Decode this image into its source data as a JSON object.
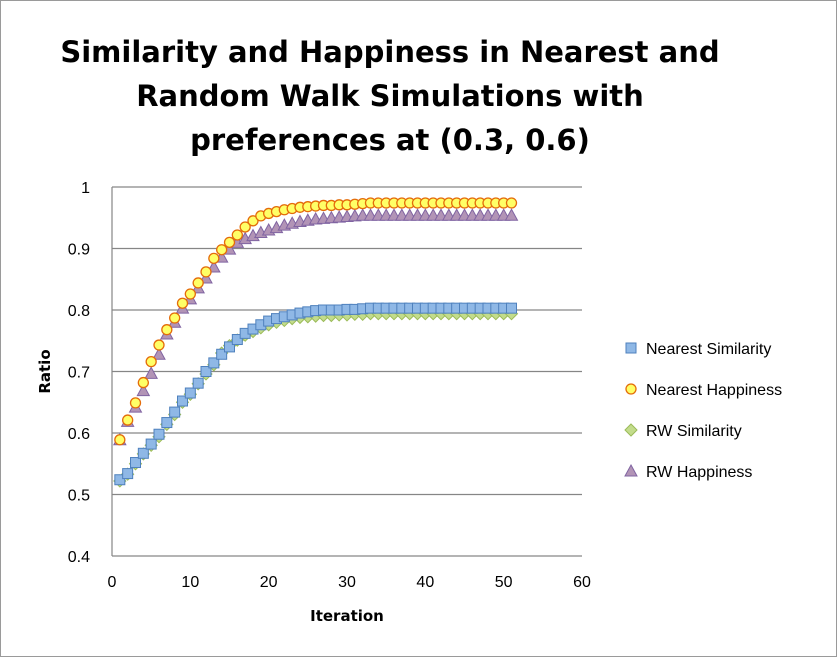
{
  "chart_data": {
    "type": "scatter",
    "title_lines": [
      "Similarity and Happiness in Nearest and",
      "Random Walk Simulations with",
      "preferences at (0.3, 0.6)"
    ],
    "xlabel": "Iteration",
    "ylabel": "Ratio",
    "xlim": [
      0,
      60
    ],
    "ylim": [
      0.4,
      1
    ],
    "xticks": [
      "0",
      "10",
      "20",
      "30",
      "40",
      "50",
      "60"
    ],
    "yticks": [
      "0.4",
      "0.5",
      "0.6",
      "0.7",
      "0.8",
      "0.9",
      "1"
    ],
    "grid": "horizontal",
    "legend_position": "right",
    "x": [
      1,
      2,
      3,
      4,
      5,
      6,
      7,
      8,
      9,
      10,
      11,
      12,
      13,
      14,
      15,
      16,
      17,
      18,
      19,
      20,
      21,
      22,
      23,
      24,
      25,
      26,
      27,
      28,
      29,
      30,
      31,
      32,
      33,
      34,
      35,
      36,
      37,
      38,
      39,
      40,
      41,
      42,
      43,
      44,
      45,
      46,
      47,
      48,
      49,
      50,
      51
    ],
    "series": [
      {
        "name": "Nearest Similarity",
        "marker": "square",
        "fill": "#8fb8e6",
        "stroke": "#4f81bd",
        "values": [
          0.524,
          0.534,
          0.552,
          0.567,
          0.582,
          0.598,
          0.617,
          0.634,
          0.652,
          0.665,
          0.681,
          0.7,
          0.714,
          0.728,
          0.74,
          0.752,
          0.762,
          0.769,
          0.776,
          0.782,
          0.786,
          0.789,
          0.792,
          0.795,
          0.797,
          0.799,
          0.8,
          0.8,
          0.8,
          0.801,
          0.801,
          0.802,
          0.803,
          0.803,
          0.803,
          0.803,
          0.803,
          0.803,
          0.803,
          0.803,
          0.803,
          0.803,
          0.803,
          0.803,
          0.803,
          0.803,
          0.803,
          0.803,
          0.803,
          0.803,
          0.803
        ]
      },
      {
        "name": "Nearest Happiness",
        "marker": "circle",
        "fill": "#ffff66",
        "stroke": "#e46c0a",
        "values": [
          0.589,
          0.621,
          0.649,
          0.682,
          0.716,
          0.743,
          0.768,
          0.787,
          0.811,
          0.826,
          0.844,
          0.862,
          0.884,
          0.898,
          0.91,
          0.922,
          0.935,
          0.945,
          0.953,
          0.957,
          0.96,
          0.963,
          0.965,
          0.967,
          0.968,
          0.969,
          0.97,
          0.97,
          0.971,
          0.971,
          0.972,
          0.973,
          0.974,
          0.974,
          0.974,
          0.974,
          0.974,
          0.974,
          0.974,
          0.974,
          0.974,
          0.974,
          0.974,
          0.974,
          0.974,
          0.974,
          0.974,
          0.974,
          0.974,
          0.974,
          0.974
        ]
      },
      {
        "name": "RW Similarity",
        "marker": "diamond",
        "fill": "#c3dc8c",
        "stroke": "#9bbb59",
        "values": [
          0.522,
          0.533,
          0.55,
          0.566,
          0.58,
          0.594,
          0.614,
          0.63,
          0.65,
          0.663,
          0.68,
          0.696,
          0.711,
          0.73,
          0.742,
          0.751,
          0.759,
          0.765,
          0.771,
          0.776,
          0.78,
          0.783,
          0.786,
          0.788,
          0.789,
          0.79,
          0.791,
          0.791,
          0.792,
          0.792,
          0.793,
          0.793,
          0.794,
          0.794,
          0.794,
          0.794,
          0.794,
          0.794,
          0.794,
          0.794,
          0.794,
          0.794,
          0.794,
          0.794,
          0.794,
          0.794,
          0.794,
          0.794,
          0.794,
          0.794,
          0.794
        ]
      },
      {
        "name": "RW Happiness",
        "marker": "triangle",
        "fill": "#b294b6",
        "stroke": "#8064a2",
        "values": [
          0.589,
          0.619,
          0.642,
          0.669,
          0.697,
          0.728,
          0.761,
          0.78,
          0.803,
          0.818,
          0.836,
          0.852,
          0.87,
          0.886,
          0.899,
          0.91,
          0.916,
          0.921,
          0.926,
          0.93,
          0.934,
          0.938,
          0.941,
          0.944,
          0.946,
          0.948,
          0.949,
          0.95,
          0.951,
          0.952,
          0.953,
          0.954,
          0.954,
          0.954,
          0.954,
          0.954,
          0.954,
          0.954,
          0.954,
          0.954,
          0.954,
          0.954,
          0.954,
          0.954,
          0.954,
          0.954,
          0.954,
          0.954,
          0.954,
          0.954,
          0.954
        ]
      }
    ]
  }
}
